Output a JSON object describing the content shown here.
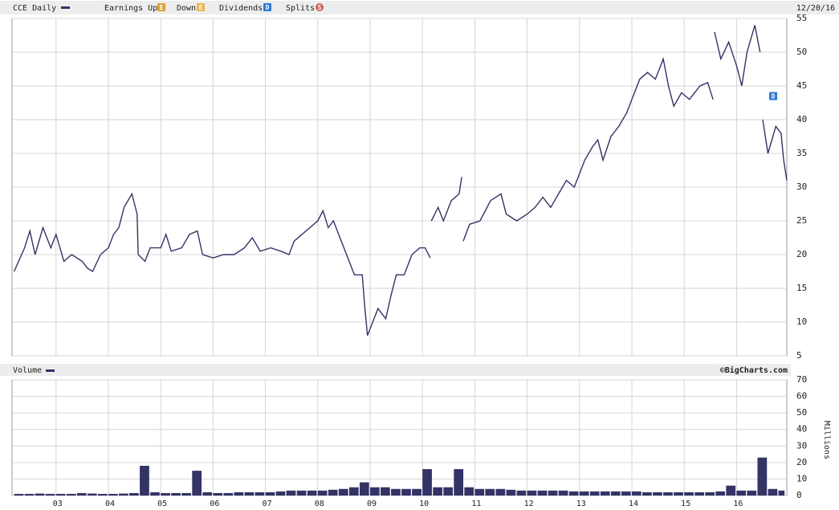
{
  "chart_data": [
    {
      "type": "line",
      "series": [
        {
          "name": "CCE Daily",
          "color": "#333366",
          "x": [
            2002.2,
            2002.4,
            2002.5,
            2002.6,
            2002.75,
            2002.9,
            2003.0,
            2003.15,
            2003.3,
            2003.5,
            2003.6,
            2003.7,
            2003.85,
            2004.0,
            2004.1,
            2004.2,
            2004.3,
            2004.45,
            2004.55,
            2004.57,
            2004.7,
            2004.8,
            2005.0,
            2005.1,
            2005.2,
            2005.4,
            2005.55,
            2005.7,
            2005.8,
            2006.0,
            2006.2,
            2006.4,
            2006.6,
            2006.75,
            2006.9,
            2007.1,
            2007.3,
            2007.45,
            2007.55,
            2007.7,
            2007.85,
            2008.0,
            2008.1,
            2008.2,
            2008.3,
            2008.45,
            2008.6,
            2008.7,
            2008.85,
            2008.9,
            2008.95,
            2009.05,
            2009.15,
            2009.3,
            2009.4,
            2009.5,
            2009.65,
            2009.8,
            2009.95,
            2010.05,
            2010.15,
            2010.16,
            2010.17,
            2010.3,
            2010.4,
            2010.55,
            2010.7,
            2010.75,
            2010.76,
            2010.78,
            2010.9,
            2011.1,
            2011.3,
            2011.5,
            2011.6,
            2011.8,
            2012.0,
            2012.15,
            2012.3,
            2012.45,
            2012.6,
            2012.75,
            2012.9,
            2013.1,
            2013.25,
            2013.35,
            2013.45,
            2013.6,
            2013.75,
            2013.9,
            2014.0,
            2014.15,
            2014.3,
            2014.45,
            2014.6,
            2014.7,
            2014.8,
            2014.95,
            2015.1,
            2015.3,
            2015.45,
            2015.55,
            2015.56,
            2015.58,
            2015.7,
            2015.85,
            2016.0,
            2016.1,
            2016.2,
            2016.35,
            2016.45,
            2016.47,
            2016.5,
            2016.6,
            2016.75,
            2016.85,
            2016.9,
            2016.96
          ],
          "values": [
            17.5,
            21,
            23.5,
            20,
            24,
            21,
            23,
            19,
            20,
            19,
            18,
            17.5,
            20,
            21,
            23,
            24,
            27,
            29,
            26,
            20,
            19,
            21,
            21,
            23,
            20.5,
            21,
            23,
            23.5,
            20,
            19.5,
            20,
            20,
            21,
            22.5,
            20.5,
            21,
            20.5,
            20,
            22,
            23,
            24,
            25,
            26.5,
            24,
            25,
            22,
            19,
            17,
            17,
            12,
            8,
            10,
            12,
            10.5,
            14,
            17,
            17,
            20,
            21,
            21,
            19.5,
            null,
            25,
            27,
            25,
            28,
            29,
            31.5,
            null,
            22,
            24.5,
            25,
            28,
            29,
            26,
            25,
            26,
            27,
            28.5,
            27,
            29,
            31,
            30,
            34,
            36,
            37,
            34,
            37.5,
            39,
            41,
            43,
            46,
            47,
            46,
            49,
            45,
            42,
            44,
            43,
            45,
            45.5,
            43,
            null,
            53,
            49,
            51.5,
            48,
            45,
            50,
            54,
            50,
            null,
            40,
            35,
            39,
            38,
            34,
            31
          ]
        }
      ],
      "legend": [
        {
          "name": "Earnings Up",
          "icon": "E",
          "color": "#e0a030"
        },
        {
          "name": "Down",
          "icon": "E",
          "color": "#e8b848"
        },
        {
          "name": "Dividends",
          "icon": "D",
          "color": "#2a7ad8"
        },
        {
          "name": "Splits",
          "icon": "S",
          "color": "#d06060"
        }
      ],
      "date": "12/20/16",
      "annotations": [
        {
          "x": 2016.7,
          "y": 43.5,
          "label": "D"
        }
      ],
      "xlim": [
        2002.16,
        2016.96
      ],
      "ylim": [
        5,
        55
      ],
      "yticks": [
        5,
        10,
        15,
        20,
        25,
        30,
        35,
        40,
        45,
        50,
        55
      ],
      "grid": true
    },
    {
      "type": "bar",
      "series": [
        {
          "name": "Volume",
          "color": "#333366",
          "x": [
            2002.2,
            2002.4,
            2002.6,
            2002.8,
            2003.0,
            2003.2,
            2003.4,
            2003.6,
            2003.8,
            2004.0,
            2004.2,
            2004.4,
            2004.6,
            2004.8,
            2005.0,
            2005.2,
            2005.4,
            2005.6,
            2005.8,
            2006.0,
            2006.2,
            2006.4,
            2006.6,
            2006.8,
            2007.0,
            2007.2,
            2007.4,
            2007.6,
            2007.8,
            2008.0,
            2008.2,
            2008.4,
            2008.6,
            2008.8,
            2009.0,
            2009.2,
            2009.4,
            2009.6,
            2009.8,
            2010.0,
            2010.2,
            2010.4,
            2010.6,
            2010.8,
            2011.0,
            2011.2,
            2011.4,
            2011.6,
            2011.8,
            2012.0,
            2012.2,
            2012.4,
            2012.6,
            2012.8,
            2013.0,
            2013.2,
            2013.4,
            2013.6,
            2013.8,
            2014.0,
            2014.2,
            2014.4,
            2014.6,
            2014.8,
            2015.0,
            2015.2,
            2015.4,
            2015.6,
            2015.8,
            2016.0,
            2016.2,
            2016.4,
            2016.6,
            2016.8
          ],
          "values": [
            1,
            1,
            1.2,
            1,
            1,
            1,
            1.5,
            1.2,
            1,
            1,
            1.2,
            1.5,
            18,
            2,
            1.5,
            1.5,
            1.5,
            15,
            2,
            1.5,
            1.5,
            2,
            2,
            2,
            2,
            2.5,
            3,
            3,
            3,
            3,
            3.5,
            4,
            5,
            8,
            5,
            5,
            4,
            4,
            4,
            16,
            5,
            5,
            16,
            5,
            4,
            4,
            4,
            3.5,
            3,
            3,
            3,
            3,
            3,
            2.5,
            2.5,
            2.5,
            2.5,
            2.5,
            2.5,
            2.5,
            2,
            2,
            2,
            2,
            2,
            2,
            2,
            2.5,
            6,
            3,
            3,
            23,
            4,
            3
          ]
        }
      ],
      "credit": "©BigCharts.com",
      "ylabel": "Millions",
      "xlim": [
        2002.16,
        2016.96
      ],
      "xticks": [
        {
          "value": 2003,
          "label": "03"
        },
        {
          "value": 2004,
          "label": "04"
        },
        {
          "value": 2005,
          "label": "05"
        },
        {
          "value": 2006,
          "label": "06"
        },
        {
          "value": 2007,
          "label": "07"
        },
        {
          "value": 2008,
          "label": "08"
        },
        {
          "value": 2009,
          "label": "09"
        },
        {
          "value": 2010,
          "label": "10"
        },
        {
          "value": 2011,
          "label": "11"
        },
        {
          "value": 2012,
          "label": "12"
        },
        {
          "value": 2013,
          "label": "13"
        },
        {
          "value": 2014,
          "label": "14"
        },
        {
          "value": 2015,
          "label": "15"
        },
        {
          "value": 2016,
          "label": "16"
        }
      ],
      "ylim": [
        0,
        70
      ],
      "yticks": [
        0,
        10,
        20,
        30,
        40,
        50,
        60,
        70
      ],
      "grid": true
    }
  ]
}
